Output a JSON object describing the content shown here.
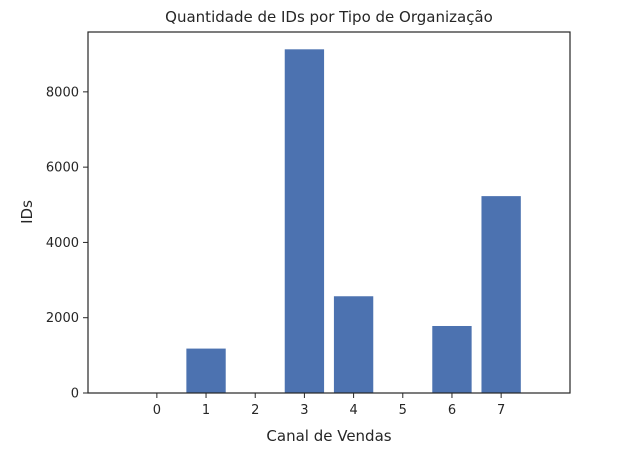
{
  "chart_data": {
    "type": "bar",
    "title": "Quantidade de IDs por Tipo de Organização",
    "xlabel": "Canal de Vendas",
    "ylabel": "IDs",
    "categories": [
      "0",
      "1",
      "2",
      "3",
      "4",
      "5",
      "6",
      "7"
    ],
    "values": [
      0,
      1180,
      0,
      9130,
      2570,
      0,
      1780,
      5230
    ],
    "ylim": [
      0,
      9590
    ],
    "yticks": [
      0,
      2000,
      4000,
      6000,
      8000
    ],
    "ytick_labels": [
      "0",
      "2000",
      "4000",
      "6000",
      "8000"
    ],
    "grid": false,
    "legend": "none",
    "bar_color": "#4c72b0",
    "axis_color": "#262626"
  }
}
